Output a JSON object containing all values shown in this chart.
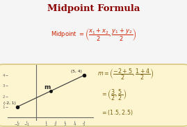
{
  "title": "Midpoint Formula",
  "title_color": "#8B0000",
  "bg_color": "#f5f5f5",
  "formula_color": "#cc2200",
  "box_bg": "#fdf5d0",
  "box_edge": "#d8c880",
  "graph_points": [
    [
      -2,
      1
    ],
    [
      5,
      4
    ]
  ],
  "midpoint": [
    1.5,
    2.5
  ],
  "point1_label": "(-2, 1)",
  "point2_label": "(5, 4)",
  "midpoint_label": "m",
  "xlim": [
    -3,
    6
  ],
  "ylim": [
    -0.3,
    5
  ],
  "line_color": "#444444",
  "dot_color": "#111111",
  "rhs_color": "#7a6010",
  "axis_color": "#666666"
}
